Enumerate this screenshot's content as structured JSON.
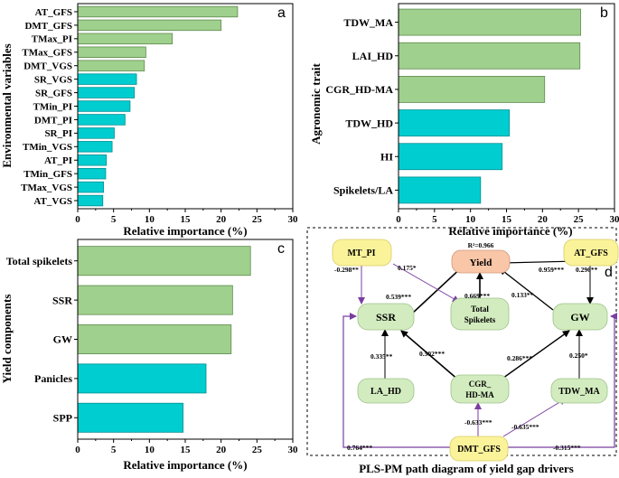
{
  "chart_data": [
    {
      "panel": "a",
      "type": "bar",
      "orientation": "horizontal",
      "categories": [
        "AT_GFS",
        "DMT_GFS",
        "TMax_PI",
        "TMax_GFS",
        "DMT_VGS",
        "SR_VGS",
        "SR_GFS",
        "TMin_PI",
        "DMT_PI",
        "SR_PI",
        "TMin_VGS",
        "AT_PI",
        "TMin_GFS",
        "TMax_VGS",
        "AT_VGS"
      ],
      "values": [
        22.3,
        20.0,
        13.2,
        9.5,
        9.3,
        8.2,
        7.9,
        7.3,
        6.6,
        5.1,
        4.8,
        4.0,
        3.9,
        3.6,
        3.5
      ],
      "colors": [
        "green",
        "green",
        "green",
        "green",
        "green",
        "cyan",
        "cyan",
        "cyan",
        "cyan",
        "cyan",
        "cyan",
        "cyan",
        "cyan",
        "cyan",
        "cyan"
      ],
      "xlabel": "Relative importance (%)",
      "ylabel": "Environmental variables",
      "xlim": [
        0,
        30
      ],
      "xticks": [
        "0",
        "5",
        "10",
        "15",
        "20",
        "25",
        "30"
      ]
    },
    {
      "panel": "b",
      "type": "bar",
      "orientation": "horizontal",
      "categories": [
        "TDW_MA",
        "LAI_HD",
        "CGR_HD-MA",
        "TDW_HD",
        "HI",
        "Spikelets/LA"
      ],
      "values": [
        25.3,
        25.2,
        20.3,
        15.4,
        14.4,
        11.4
      ],
      "colors": [
        "green",
        "green",
        "green",
        "cyan",
        "cyan",
        "cyan"
      ],
      "xlabel": "Relative importance (%)",
      "ylabel": "Agronomic trait",
      "xlim": [
        0,
        30
      ],
      "xticks": [
        "0",
        "5",
        "10",
        "15",
        "20",
        "25",
        "30"
      ]
    },
    {
      "panel": "c",
      "type": "bar",
      "orientation": "horizontal",
      "categories": [
        "Total spikelets",
        "SSR",
        "GW",
        "Panicles",
        "SPP"
      ],
      "values": [
        24.1,
        21.6,
        21.4,
        17.9,
        14.7
      ],
      "colors": [
        "green",
        "green",
        "green",
        "cyan",
        "cyan"
      ],
      "xlabel": "Relative importance (%)",
      "ylabel": "Yield components",
      "xlim": [
        0,
        30
      ],
      "xticks": [
        "0",
        "5",
        "10",
        "15",
        "20",
        "25",
        "30"
      ]
    }
  ],
  "diagram": {
    "panel": "d",
    "title": "PLS-PM path diagram of yield gap drivers",
    "r2_label": "R²=0.966",
    "nodes": {
      "mt_pi": "MT_PI",
      "yield": "Yield",
      "at_gfs": "AT_GFS",
      "ssr": "SSR",
      "total_spikelets_1": "Total",
      "total_spikelets_2": "Spikelets",
      "gw": "GW",
      "la_hd": "LA_HD",
      "cgr_1": "CGR_",
      "cgr_2": "HD-MA",
      "tdw_ma": "TDW_MA",
      "dmt_gfs": "DMT_GFS"
    },
    "coefficients": {
      "mt_ssr": "-0.298**",
      "mt_ts": "0.175*",
      "ssr_yield": "0.539***",
      "ts_yield": "0.669***",
      "gw_yield": "0.133**",
      "at_yield": "0.959***",
      "at_gw": "0.296**",
      "la_ssr": "0.335**",
      "cgr_ssr": "0.502***",
      "cgr_gw": "0.286***",
      "tdw_gw": "0.250*",
      "dmt_cgr": "-0.633***",
      "dmt_tdw": "-0.635***",
      "dmt_ssr": "0.764***",
      "dmt_gw": "-0.315***"
    }
  },
  "panel_letters": {
    "a": "a",
    "b": "b",
    "c": "c",
    "d": "d"
  }
}
